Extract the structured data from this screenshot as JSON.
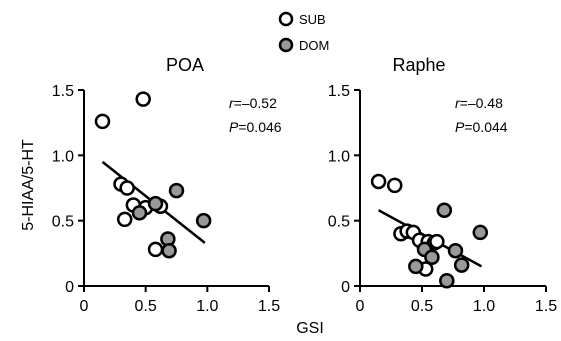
{
  "legend": {
    "sub_label": "SUB",
    "dom_label": "DOM",
    "sub_color": "#ffffff",
    "dom_color": "#999999",
    "marker_stroke": "#000000"
  },
  "axes_shared": {
    "ylabel": "5-HIAA/5-HT",
    "xlabel": "GSI"
  },
  "chart_data": [
    {
      "type": "scatter",
      "title": "POA",
      "xlim": [
        0,
        1.5
      ],
      "ylim": [
        0,
        1.5
      ],
      "x_ticks": [
        "0",
        "0.5",
        "1.0",
        "1.5"
      ],
      "y_ticks": [
        "0",
        "0.5",
        "1.0",
        "1.5"
      ],
      "x_tick_values": [
        0,
        0.5,
        1.0,
        1.5
      ],
      "y_tick_values": [
        0,
        0.5,
        1.0,
        1.5
      ],
      "stats": {
        "r_prefix": "r",
        "r_rest": "=–0.52",
        "p_prefix": "P",
        "p_rest": "=0.046"
      },
      "fit": {
        "x": [
          0.15,
          0.98
        ],
        "y": [
          0.95,
          0.33
        ]
      },
      "series": [
        {
          "name": "SUB",
          "points": [
            {
              "x": 0.15,
              "y": 1.26
            },
            {
              "x": 0.48,
              "y": 1.43
            },
            {
              "x": 0.3,
              "y": 0.78
            },
            {
              "x": 0.35,
              "y": 0.75
            },
            {
              "x": 0.4,
              "y": 0.62
            },
            {
              "x": 0.33,
              "y": 0.51
            },
            {
              "x": 0.5,
              "y": 0.6
            },
            {
              "x": 0.62,
              "y": 0.61
            },
            {
              "x": 0.58,
              "y": 0.28
            }
          ]
        },
        {
          "name": "DOM",
          "points": [
            {
              "x": 0.45,
              "y": 0.56
            },
            {
              "x": 0.58,
              "y": 0.63
            },
            {
              "x": 0.75,
              "y": 0.73
            },
            {
              "x": 0.97,
              "y": 0.5
            },
            {
              "x": 0.68,
              "y": 0.36
            },
            {
              "x": 0.69,
              "y": 0.27
            }
          ]
        }
      ]
    },
    {
      "type": "scatter",
      "title": "Raphe",
      "xlim": [
        0,
        1.5
      ],
      "ylim": [
        0,
        1.5
      ],
      "x_ticks": [
        "0",
        "0.5",
        "1.0",
        "1.5"
      ],
      "y_ticks": [
        "0",
        "0.5",
        "1.0",
        "1.5"
      ],
      "x_tick_values": [
        0,
        0.5,
        1.0,
        1.5
      ],
      "y_tick_values": [
        0,
        0.5,
        1.0,
        1.5
      ],
      "stats": {
        "r_prefix": "r",
        "r_rest": "=–0.48",
        "p_prefix": "P",
        "p_rest": "=0.044"
      },
      "fit": {
        "x": [
          0.15,
          0.98
        ],
        "y": [
          0.58,
          0.15
        ]
      },
      "series": [
        {
          "name": "SUB",
          "points": [
            {
              "x": 0.15,
              "y": 0.8
            },
            {
              "x": 0.28,
              "y": 0.77
            },
            {
              "x": 0.33,
              "y": 0.4
            },
            {
              "x": 0.38,
              "y": 0.42
            },
            {
              "x": 0.43,
              "y": 0.41
            },
            {
              "x": 0.48,
              "y": 0.35
            },
            {
              "x": 0.55,
              "y": 0.34
            },
            {
              "x": 0.6,
              "y": 0.33
            },
            {
              "x": 0.62,
              "y": 0.34
            },
            {
              "x": 0.53,
              "y": 0.13
            }
          ]
        },
        {
          "name": "DOM",
          "points": [
            {
              "x": 0.45,
              "y": 0.15
            },
            {
              "x": 0.52,
              "y": 0.28
            },
            {
              "x": 0.58,
              "y": 0.22
            },
            {
              "x": 0.68,
              "y": 0.58
            },
            {
              "x": 0.7,
              "y": 0.04
            },
            {
              "x": 0.77,
              "y": 0.27
            },
            {
              "x": 0.82,
              "y": 0.16
            },
            {
              "x": 0.97,
              "y": 0.41
            }
          ]
        }
      ]
    }
  ]
}
